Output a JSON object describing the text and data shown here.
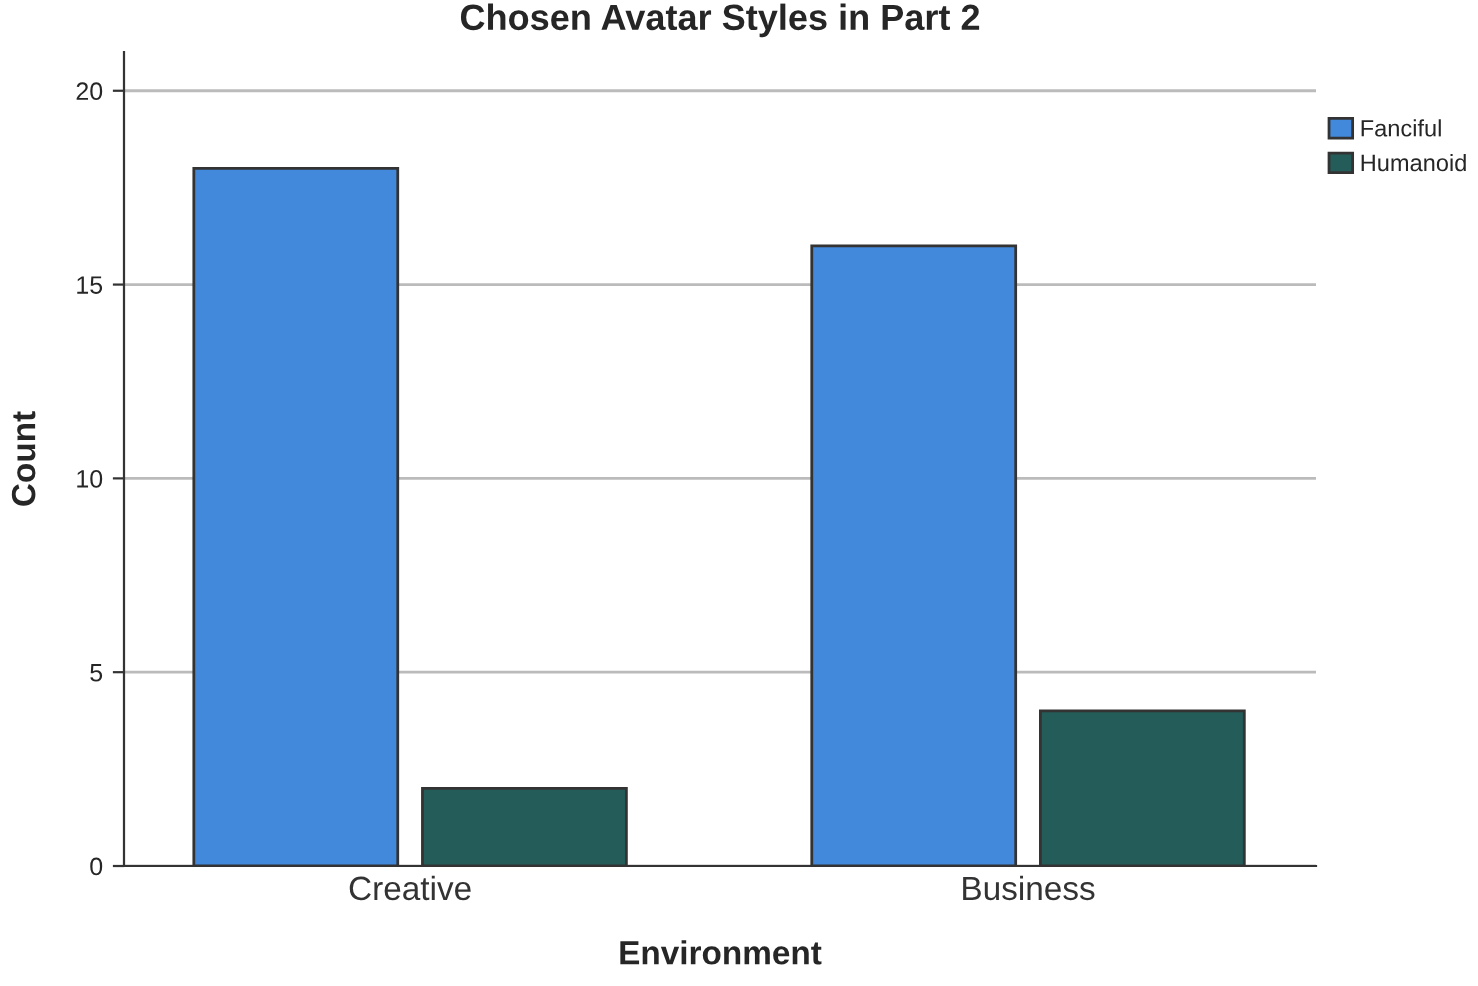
{
  "chart_data": {
    "type": "bar",
    "title": "Chosen Avatar Styles in Part 2",
    "xlabel": "Environment",
    "ylabel": "Count",
    "categories": [
      "Creative",
      "Business"
    ],
    "series": [
      {
        "name": "Fanciful",
        "color": "#4289dc",
        "values": [
          18,
          16
        ]
      },
      {
        "name": "Humanoid",
        "color": "#245c5a",
        "values": [
          2,
          4
        ]
      }
    ],
    "ylim": [
      0,
      21
    ],
    "yticks": [
      0,
      5,
      10,
      15,
      20
    ],
    "grid": "y",
    "legend": "right"
  }
}
